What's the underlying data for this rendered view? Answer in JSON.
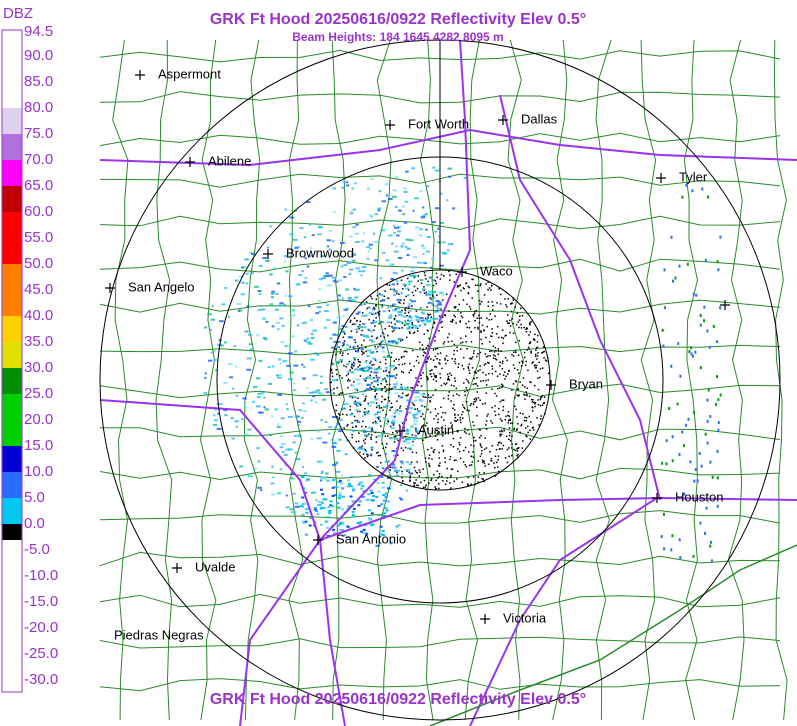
{
  "header": {
    "title": "GRK Ft Hood 20250616/0922 Reflectivity Elev 0.5°",
    "subtitle": "Beam Heights: 184 1645 4282 8095 m",
    "footer_title": "GRK Ft Hood 20250616/0922 Reflectivity Elev 0.5°"
  },
  "legend": {
    "unit": "DBZ",
    "labels": [
      "94.5",
      "90.0",
      "85.0",
      "80.0",
      "75.0",
      "70.0",
      "65.0",
      "60.0",
      "55.0",
      "50.0",
      "45.0",
      "40.0",
      "35.0",
      "30.0",
      "25.0",
      "20.0",
      "15.0",
      "10.0",
      "5.0",
      "0.0",
      "-5.0",
      "-10.0",
      "-15.0",
      "-20.0",
      "-25.0",
      "-30.0"
    ]
  },
  "cities": [
    "Aspermont",
    "Fort Worth",
    "Dallas",
    "Abilene",
    "Tyler",
    "Brownwood",
    "Waco",
    "San Angelo",
    "Bryan",
    "Austin",
    "Houston",
    "San Antonio",
    "Uvalde",
    "Victoria",
    "Piedras Negras"
  ]
}
